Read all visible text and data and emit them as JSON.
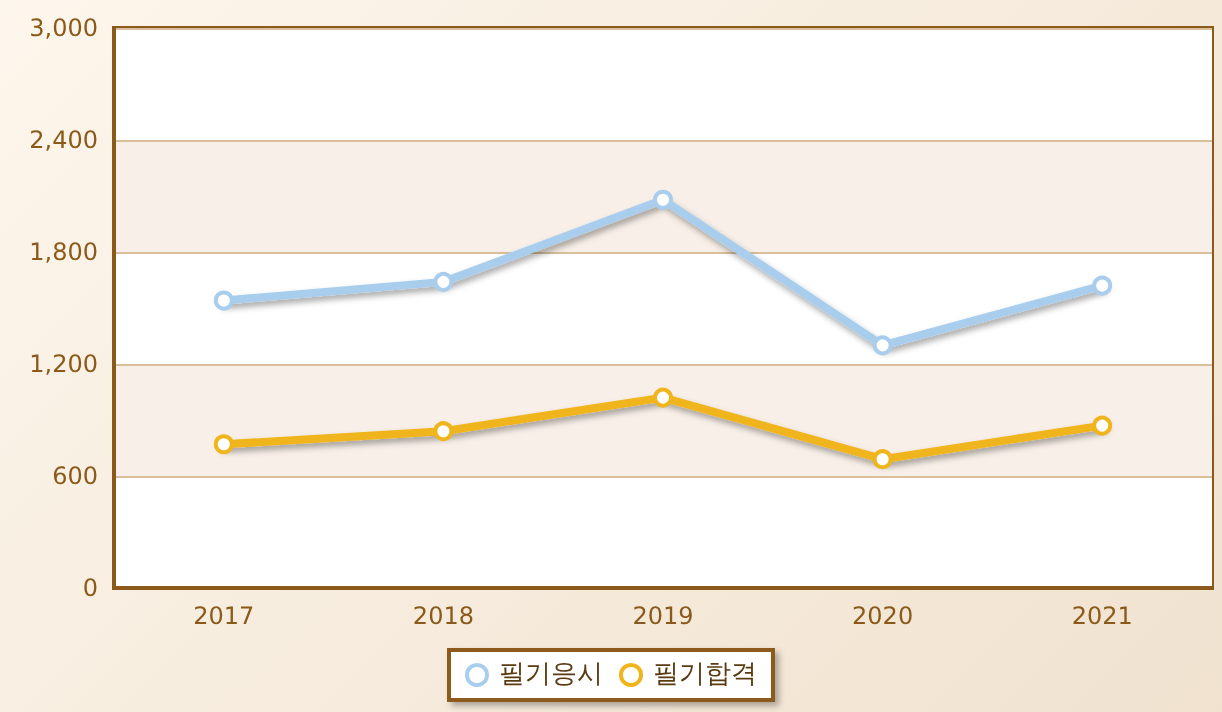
{
  "chart_data": {
    "type": "line",
    "categories": [
      "2017",
      "2018",
      "2019",
      "2020",
      "2021"
    ],
    "series": [
      {
        "name": "필기응시",
        "color": "#a9cdec",
        "values": [
          1540,
          1640,
          2080,
          1300,
          1620
        ]
      },
      {
        "name": "필기합격",
        "color": "#f0b41c",
        "values": [
          770,
          840,
          1020,
          690,
          870
        ]
      }
    ],
    "ylim": [
      0,
      3000
    ],
    "yticks": [
      {
        "value": 0,
        "label": "0"
      },
      {
        "value": 600,
        "label": "600"
      },
      {
        "value": 1200,
        "label": "1,200"
      },
      {
        "value": 1800,
        "label": "1,800"
      },
      {
        "value": 2400,
        "label": "2,400"
      },
      {
        "value": 3000,
        "label": "3,000"
      }
    ],
    "grid": "y",
    "legend": "bottom",
    "marker": "circle",
    "line_style": "solid"
  }
}
